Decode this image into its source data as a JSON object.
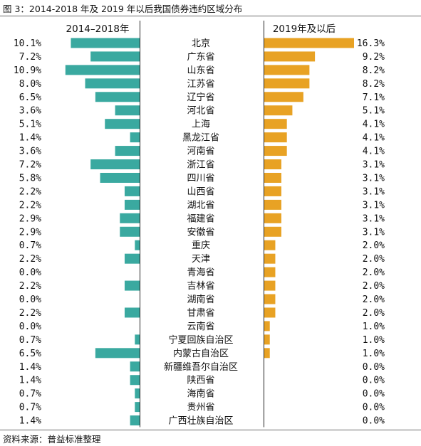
{
  "figure": {
    "title": "图 3：2014-2018 年及 2019 年以后我国债券违约区域分布",
    "source": "资料来源：普益标准整理"
  },
  "chart_data": {
    "type": "bar",
    "orientation": "horizontal-butterfly",
    "categories": [
      "北京",
      "广东省",
      "山东省",
      "江苏省",
      "辽宁省",
      "河北省",
      "上海",
      "黑龙江省",
      "河南省",
      "浙江省",
      "四川省",
      "山西省",
      "湖北省",
      "福建省",
      "安徽省",
      "重庆",
      "天津",
      "青海省",
      "吉林省",
      "湖南省",
      "甘肃省",
      "云南省",
      "宁夏回族自治区",
      "内蒙古自治区",
      "新疆维吾尔自治区",
      "陕西省",
      "海南省",
      "贵州省",
      "广西壮族自治区"
    ],
    "series": [
      {
        "name": "2014–2018年",
        "color": "#3aa9a0",
        "values": [
          10.1,
          7.2,
          10.9,
          8.0,
          6.5,
          3.6,
          5.1,
          1.4,
          3.6,
          7.2,
          5.8,
          2.2,
          2.2,
          2.9,
          2.9,
          0.7,
          2.2,
          0.0,
          2.2,
          0.0,
          2.2,
          0.0,
          0.7,
          6.5,
          1.4,
          1.4,
          0.7,
          0.7,
          1.4
        ],
        "labels": [
          "10.1%",
          "7.2%",
          "10.9%",
          "8.0%",
          "6.5%",
          "3.6%",
          "5.1%",
          "1.4%",
          "3.6%",
          "7.2%",
          "5.8%",
          "2.2%",
          "2.2%",
          "2.9%",
          "2.9%",
          "0.7%",
          "2.2%",
          "0.0%",
          "2.2%",
          "0.0%",
          "2.2%",
          "0.0%",
          "0.7%",
          "6.5%",
          "1.4%",
          "1.4%",
          "0.7%",
          "0.7%",
          "1.4%"
        ]
      },
      {
        "name": "2019年及以后",
        "color": "#e8a224",
        "values": [
          16.3,
          9.2,
          8.2,
          8.2,
          7.1,
          5.1,
          4.1,
          4.1,
          4.1,
          3.1,
          3.1,
          3.1,
          3.1,
          3.1,
          3.1,
          2.0,
          2.0,
          2.0,
          2.0,
          2.0,
          2.0,
          1.0,
          1.0,
          1.0,
          0.0,
          0.0,
          0.0,
          0.0,
          0.0
        ],
        "labels": [
          "16.3%",
          "9.2%",
          "8.2%",
          "8.2%",
          "7.1%",
          "5.1%",
          "4.1%",
          "4.1%",
          "4.1%",
          "3.1%",
          "3.1%",
          "3.1%",
          "3.1%",
          "3.1%",
          "3.1%",
          "2.0%",
          "2.0%",
          "2.0%",
          "2.0%",
          "2.0%",
          "2.0%",
          "1.0%",
          "1.0%",
          "1.0%",
          "0.0%",
          "0.0%",
          "0.0%",
          "0.0%",
          "0.0%"
        ]
      }
    ]
  }
}
